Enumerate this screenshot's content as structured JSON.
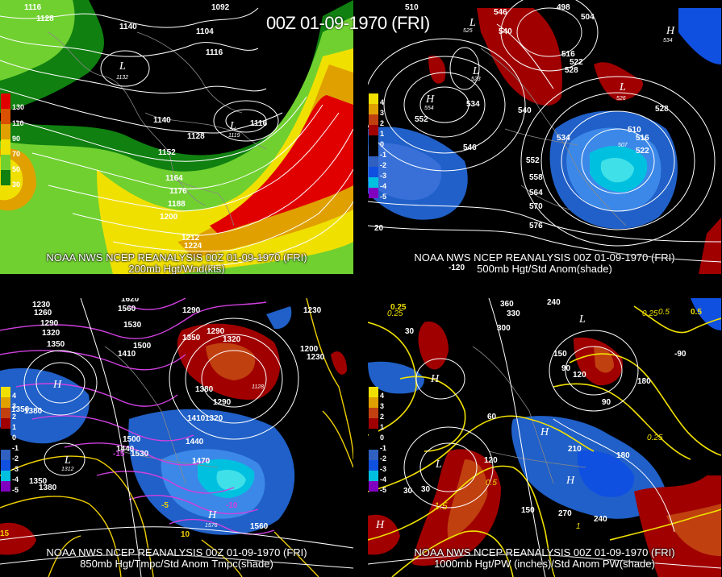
{
  "main_title": "00Z 01-09-1970 (FRI)",
  "panels": [
    {
      "id": "p1",
      "line1": "NOAA NWS NCEP REANALYSIS 00Z 01-09-1970 (FRI)",
      "line2": "200mb Hgt/Wnd(kts)",
      "legend": [
        "130",
        "110",
        "90",
        "70",
        "50",
        "30"
      ],
      "legend_colors": [
        "#e00000",
        "#d85000",
        "#e0a000",
        "#f0e000",
        "#70d030",
        "#108010"
      ],
      "contour_labels": [
        "1116",
        "1128",
        "1092",
        "1140",
        "1104",
        "1116",
        "1140",
        "1128",
        "1116",
        "1152",
        "1164",
        "1176",
        "1188",
        "1200",
        "1212",
        "1224"
      ],
      "h_l_labels": [
        "L",
        "L"
      ],
      "small_labels": [
        "1132",
        "1119"
      ]
    },
    {
      "id": "p2",
      "line1": "NOAA NWS NCEP REANALYSIS 00Z 01-09-1970 (FRI)",
      "line2": "500mb Hgt/Std Anom(shade)",
      "legend": [
        "4",
        "3",
        "2",
        "1",
        "0",
        "-1",
        "-2",
        "-3",
        "-4",
        "-5"
      ],
      "legend_colors": [
        "#f0e000",
        "#e0a000",
        "#c04010",
        "#a00000",
        "#000000",
        "#000000",
        "#3060c0",
        "#1050e0",
        "#00c0e0",
        "#8000c0"
      ],
      "contour_labels": [
        "510",
        "498",
        "504",
        "546",
        "540",
        "516",
        "522",
        "528",
        "552",
        "534",
        "528",
        "540",
        "510",
        "516",
        "522",
        "546",
        "552",
        "534",
        "558",
        "564",
        "570",
        "576"
      ],
      "h_l_labels": [
        "H",
        "L",
        "L",
        "H",
        "L"
      ],
      "small_labels": [
        "554",
        "525",
        "523",
        "534",
        "507",
        "526"
      ],
      "side_labels": [
        "-120",
        "20"
      ]
    },
    {
      "id": "p3",
      "line1": "NOAA NWS NCEP REANALYSIS 00Z 01-09-1970 (FRI)",
      "line2": "850mb Hgt/Tmpc/Std Anom Tmpc(shade)",
      "legend": [
        "4",
        "3",
        "2",
        "1",
        "0",
        "-1",
        "-2",
        "-3",
        "-4",
        "-5"
      ],
      "legend_colors": [
        "#f0e000",
        "#e0a000",
        "#c04010",
        "#a00000",
        "#000000",
        "#000000",
        "#3060c0",
        "#1050e0",
        "#00c0e0",
        "#8000c0"
      ],
      "contour_labels": [
        "1230",
        "1260",
        "1290",
        "1320",
        "1350",
        "1620",
        "1560",
        "1290",
        "1230",
        "1530",
        "1500",
        "1290",
        "1320",
        "1350",
        "1410",
        "1200",
        "1230",
        "1380",
        "1350",
        "1290",
        "1320",
        "1410",
        "1440",
        "1500",
        "1530",
        "1470",
        "1350",
        "1380",
        "1440",
        "1560",
        "1380"
      ],
      "h_l_labels": [
        "H",
        "L",
        "H"
      ],
      "small_labels": [
        "1128",
        "1312",
        "1576"
      ],
      "temp_labels": [
        "15",
        "10",
        "-5",
        "-10",
        "-15"
      ]
    },
    {
      "id": "p4",
      "line1": "NOAA NWS NCEP REANALYSIS 00Z 01-09-1970 (FRI)",
      "line2": "1000mb Hgt/PW (inches)/Std Anom PW(shade)",
      "legend": [
        "4",
        "3",
        "2",
        "1",
        "0",
        "-1",
        "-2",
        "-3",
        "-4",
        "-5"
      ],
      "legend_colors": [
        "#f0e000",
        "#e0a000",
        "#c04010",
        "#a00000",
        "#000000",
        "#000000",
        "#3060c0",
        "#1050e0",
        "#00c0e0",
        "#8000c0"
      ],
      "contour_labels": [
        "360",
        "240",
        "0.25",
        "0.5",
        "330",
        "300",
        "30",
        "150",
        "90",
        "60",
        "120",
        "180",
        "-90",
        "210",
        "180",
        "120",
        "30",
        "90",
        "150",
        "270",
        "240",
        "30"
      ],
      "h_l_labels": [
        "H",
        "L",
        "H",
        "H",
        "L",
        "H"
      ],
      "small_labels": [
        "0.25",
        "0.25",
        "0.5",
        "1.5",
        "1",
        "0.5",
        "0.25"
      ]
    }
  ],
  "colors": {
    "wind_light": "#70d030",
    "wind_dark": "#108010",
    "wind_yellow": "#f0e000",
    "wind_orange": "#e0a000",
    "wind_red": "#e00000",
    "anom_red": "#a00000",
    "anom_blue": "#2060c8",
    "anom_cyan": "#00d0e0",
    "temp_magenta": "#d040e0",
    "temp_yellow": "#f0d000",
    "pw_yellow": "#f0e000"
  }
}
